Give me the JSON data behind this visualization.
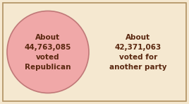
{
  "bg_color": "#f5e8d0",
  "border_color": "#b09060",
  "circle_fill": "#f0a8a8",
  "circle_edge": "#c07878",
  "text_color": "#5a2810",
  "circle_text": "About\n44,763,085\nvoted\nRepublican",
  "outside_text": "About\n42,371,063\nvoted for\nanother party",
  "font_size": 7.5
}
